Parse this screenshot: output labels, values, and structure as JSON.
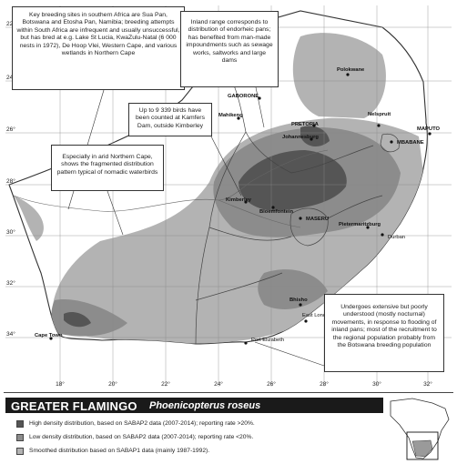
{
  "species": {
    "common_name": "GREATER FLAMINGO",
    "scientific_name": "Phoenicopterus roseus"
  },
  "legend": [
    {
      "label": "High density distribution, based on SABAP2 data (2007-2014); reporting rate >20%.",
      "color": "#555555"
    },
    {
      "label": "Low density distribution, based on SABAP2 data (2007-2014); reporting rate <20%.",
      "color": "#8c8c8c"
    },
    {
      "label": "Smoothed distribution based on SABAP1 data (mainly 1987-1992).",
      "color": "#b3b3b3"
    }
  ],
  "callouts": {
    "breeding": "Key breeding sites in southern Africa are Sua Pan, Botswana and Etosha Pan, Namibia; breeding attempts within South Africa are infrequent and usually unsuccessful, but has bred at e.g. Lake St Lucia, KwaZulu-Natal (6 000 nests in 1972), De Hoop Vlei, Western Cape, and various wetlands in Northern Cape",
    "inland": "Inland range corresponds to distribution of endorheic pans; has benefited from man-made impoundments such as sewage works, saltworks and large dams",
    "kamfers": "Up to 9 339 birds have been counted at Kamfers Dam, outside Kimberley",
    "northern_cape": "Especially in arid Northern Cape, shows the fragmented distribution pattern typical of nomadic waterbirds",
    "movements": "Undergoes extensive but poorly understood (mostly nocturnal) movements, in response to flooding of inland pans; most of the recruitment to the regional population probably from the Botswana breeding population"
  },
  "places": {
    "polokwane": "Polokwane",
    "gaborone": "GABORONE",
    "mahikeng": "Mahikeng",
    "nelspruit": "Nelspruit",
    "pretoria": "PRETORIA",
    "johannesburg": "Johannesburg",
    "maputo": "MAPUTO",
    "mbabane": "MBABANE",
    "kimberley": "Kimberley",
    "bloemfontein": "Bloemfontein",
    "maseru": "MASERU",
    "pietermaritzburg": "Pietermaritzburg",
    "durban": "Durban",
    "bhisho": "Bhisho",
    "east_london": "East London",
    "cape_town": "Cape Town",
    "port_elizabeth": "Port Elizabeth"
  },
  "latitudes": [
    "22°",
    "24°",
    "26°",
    "28°",
    "30°",
    "32°",
    "34°"
  ],
  "longitudes": [
    "18°",
    "20°",
    "22°",
    "24°",
    "26°",
    "28°",
    "30°",
    "32°"
  ]
}
